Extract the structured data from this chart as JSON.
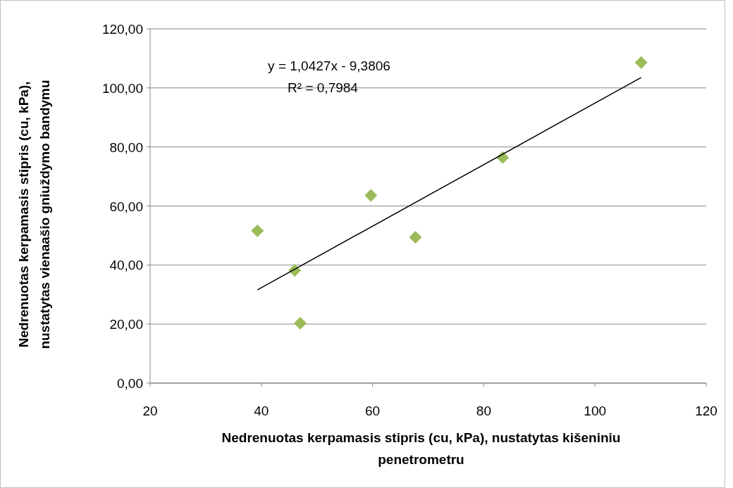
{
  "chart_data": {
    "type": "scatter",
    "xlabel": "Nedrenuotas kerpamasis stipris (cu, kPa), nustatytas kišeniniu penetrometru",
    "ylabel": "Nedrenuotas kerpamasis stipris (cu, kPa), nustatytas vienaašio gniuždymo bandymu",
    "annotations": [
      "y = 1,0427x - 9,3806",
      "R² = 0,7984"
    ],
    "series": [
      {
        "color": "#9bbb59",
        "x": [
          39.3,
          46.0,
          47.0,
          59.7,
          67.7,
          83.4,
          108.3
        ],
        "values": [
          51.6,
          38.2,
          20.3,
          63.6,
          49.4,
          76.4,
          108.6
        ],
        "marker": "diamond"
      },
      {
        "type": "line",
        "color": "#000000",
        "x": [
          39.3,
          108.3
        ],
        "values": [
          31.6,
          103.5
        ],
        "marker": "none",
        "line_style": "solid"
      }
    ],
    "xlim": [
      20,
      120
    ],
    "xticks": [
      20,
      40,
      60,
      80,
      100,
      120
    ],
    "ylim": [
      0,
      120
    ],
    "yticks": [
      {
        "value": 0,
        "label": "0,00"
      },
      {
        "value": 20,
        "label": "20,00"
      },
      {
        "value": 40,
        "label": "40,00"
      },
      {
        "value": 60,
        "label": "60,00"
      },
      {
        "value": 80,
        "label": "80,00"
      },
      {
        "value": 100,
        "label": "100,00"
      },
      {
        "value": 120,
        "label": "120,00"
      }
    ],
    "grid": "y"
  }
}
